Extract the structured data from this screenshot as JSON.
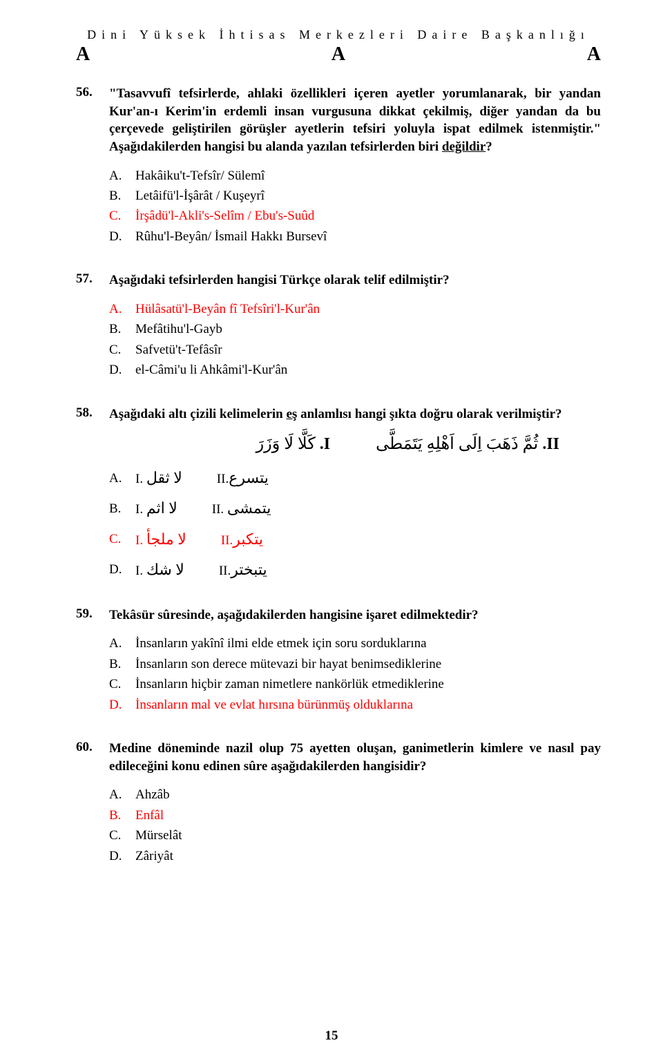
{
  "header": {
    "department_line": "Dini Yüksek İhtisas Merkezleri Daire Başkanlığı",
    "marker": "A"
  },
  "questions": [
    {
      "num": "56.",
      "text_parts": [
        "\"Tasavvufî tefsirlerde, ahlaki özellikleri içeren ayetler yorumlanarak, bir yandan Kur'an-ı Kerim'in erdemli insan vurgusuna dikkat çekilmiş, diğer yandan da bu çerçevede geliştirilen görüşler ayetlerin tefsiri yoluyla ispat edilmek istenmiştir.\" Aşağıdakilerden hangisi bu alanda yazılan tefsirlerden biri ",
        "değildir",
        "?"
      ],
      "options": [
        {
          "l": "A.",
          "t": "Hakâiku't-Tefsîr/ Sülemî",
          "red": false
        },
        {
          "l": "B.",
          "t": "Letâifü'l-İşârât / Kuşeyrî",
          "red": false
        },
        {
          "l": "C.",
          "t": "İrşâdü'l-Akli's-Selîm / Ebu's-Suûd",
          "red": true
        },
        {
          "l": "D.",
          "t": "Rûhu'l-Beyân/ İsmail Hakkı Bursevî",
          "red": false
        }
      ]
    },
    {
      "num": "57.",
      "text_plain": "Aşağıdaki tefsirlerden hangisi Türkçe olarak telif edilmiştir?",
      "options": [
        {
          "l": "A.",
          "t": "Hülâsatü'l-Beyân fî Tefsîri'l-Kur'ân",
          "red": true
        },
        {
          "l": "B.",
          "t": "Mefâtihu'l-Gayb",
          "red": false
        },
        {
          "l": "C.",
          "t": "Safvetü't-Tefâsîr",
          "red": false
        },
        {
          "l": "D.",
          "t": "el-Câmi'u li Ahkâmi'l-Kur'ân",
          "red": false
        }
      ]
    },
    {
      "num": "58.",
      "text_parts": [
        "Aşağıdaki altı çizili kelimelerin ",
        "eş",
        " anlamlısı hangi şıkta doğru olarak verilmiştir?"
      ],
      "arabic_header": {
        "I_label": "I.",
        "I_text": "كَلَّا لَا وَزَرَ",
        "II_label": "II.",
        "II_text": "ثُمَّ ذَهَبَ اِلَى اَهْلِهِ يَتَمَطَّى"
      },
      "arabic_options": [
        {
          "l": "A.",
          "I": "لا ثقل",
          "II": "يتسرع",
          "red": false
        },
        {
          "l": "B.",
          "I": "لا اثم",
          "II": "يتمشى",
          "red": false
        },
        {
          "l": "C.",
          "I": "لا ملجأ",
          "II": "يتكبر",
          "red": true
        },
        {
          "l": "D.",
          "I": "لا شك",
          "II": "يتبختر",
          "red": false
        }
      ]
    },
    {
      "num": "59.",
      "text_plain": "Tekâsür sûresinde, aşağıdakilerden hangisine işaret edilmektedir?",
      "options": [
        {
          "l": "A.",
          "t": "İnsanların yakînî ilmi elde etmek için soru sorduklarına",
          "red": false
        },
        {
          "l": "B.",
          "t": "İnsanların son derece mütevazi bir hayat benimsediklerine",
          "red": false
        },
        {
          "l": "C.",
          "t": "İnsanların hiçbir zaman nimetlere nankörlük etmediklerine",
          "red": false
        },
        {
          "l": "D.",
          "t": "İnsanların mal ve evlat hırsına bürünmüş olduklarına",
          "red": true
        }
      ]
    },
    {
      "num": "60.",
      "text_plain": "Medine döneminde nazil olup 75 ayetten oluşan, ganimetlerin kimlere ve nasıl pay edileceğini konu edinen sûre aşağıdakilerden hangisidir?",
      "options": [
        {
          "l": "A.",
          "t": "Ahzâb",
          "red": false
        },
        {
          "l": "B.",
          "t": "Enfâl",
          "red": true
        },
        {
          "l": "C.",
          "t": "Mürselât",
          "red": false
        },
        {
          "l": "D.",
          "t": "Zâriyât",
          "red": false
        }
      ]
    }
  ],
  "page_number": "15",
  "labels": {
    "I": "I.",
    "II": "II."
  }
}
